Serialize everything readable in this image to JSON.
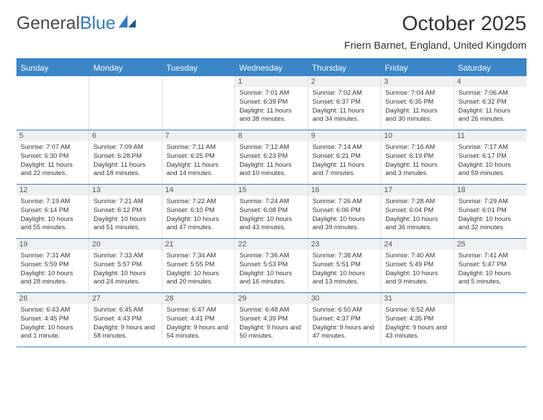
{
  "brand": {
    "part1": "General",
    "part2": "Blue"
  },
  "title": "October 2025",
  "location": "Friern Barnet, England, United Kingdom",
  "colors": {
    "accent": "#3b86c8",
    "border": "#2f7ac0",
    "daybg": "#eef0f2"
  },
  "weekdays": [
    "Sunday",
    "Monday",
    "Tuesday",
    "Wednesday",
    "Thursday",
    "Friday",
    "Saturday"
  ],
  "weeks": [
    [
      null,
      null,
      null,
      {
        "n": "1",
        "sr": "7:01 AM",
        "ss": "6:39 PM",
        "dl": "11 hours and 38 minutes."
      },
      {
        "n": "2",
        "sr": "7:02 AM",
        "ss": "6:37 PM",
        "dl": "11 hours and 34 minutes."
      },
      {
        "n": "3",
        "sr": "7:04 AM",
        "ss": "6:35 PM",
        "dl": "11 hours and 30 minutes."
      },
      {
        "n": "4",
        "sr": "7:06 AM",
        "ss": "6:32 PM",
        "dl": "11 hours and 26 minutes."
      }
    ],
    [
      {
        "n": "5",
        "sr": "7:07 AM",
        "ss": "6:30 PM",
        "dl": "11 hours and 22 minutes."
      },
      {
        "n": "6",
        "sr": "7:09 AM",
        "ss": "6:28 PM",
        "dl": "11 hours and 18 minutes."
      },
      {
        "n": "7",
        "sr": "7:11 AM",
        "ss": "6:25 PM",
        "dl": "11 hours and 14 minutes."
      },
      {
        "n": "8",
        "sr": "7:12 AM",
        "ss": "6:23 PM",
        "dl": "11 hours and 10 minutes."
      },
      {
        "n": "9",
        "sr": "7:14 AM",
        "ss": "6:21 PM",
        "dl": "11 hours and 7 minutes."
      },
      {
        "n": "10",
        "sr": "7:16 AM",
        "ss": "6:19 PM",
        "dl": "11 hours and 3 minutes."
      },
      {
        "n": "11",
        "sr": "7:17 AM",
        "ss": "6:17 PM",
        "dl": "10 hours and 59 minutes."
      }
    ],
    [
      {
        "n": "12",
        "sr": "7:19 AM",
        "ss": "6:14 PM",
        "dl": "10 hours and 55 minutes."
      },
      {
        "n": "13",
        "sr": "7:21 AM",
        "ss": "6:12 PM",
        "dl": "10 hours and 51 minutes."
      },
      {
        "n": "14",
        "sr": "7:22 AM",
        "ss": "6:10 PM",
        "dl": "10 hours and 47 minutes."
      },
      {
        "n": "15",
        "sr": "7:24 AM",
        "ss": "6:08 PM",
        "dl": "10 hours and 43 minutes."
      },
      {
        "n": "16",
        "sr": "7:26 AM",
        "ss": "6:06 PM",
        "dl": "10 hours and 39 minutes."
      },
      {
        "n": "17",
        "sr": "7:28 AM",
        "ss": "6:04 PM",
        "dl": "10 hours and 36 minutes."
      },
      {
        "n": "18",
        "sr": "7:29 AM",
        "ss": "6:01 PM",
        "dl": "10 hours and 32 minutes."
      }
    ],
    [
      {
        "n": "19",
        "sr": "7:31 AM",
        "ss": "5:59 PM",
        "dl": "10 hours and 28 minutes."
      },
      {
        "n": "20",
        "sr": "7:33 AM",
        "ss": "5:57 PM",
        "dl": "10 hours and 24 minutes."
      },
      {
        "n": "21",
        "sr": "7:34 AM",
        "ss": "5:55 PM",
        "dl": "10 hours and 20 minutes."
      },
      {
        "n": "22",
        "sr": "7:36 AM",
        "ss": "5:53 PM",
        "dl": "10 hours and 16 minutes."
      },
      {
        "n": "23",
        "sr": "7:38 AM",
        "ss": "5:51 PM",
        "dl": "10 hours and 13 minutes."
      },
      {
        "n": "24",
        "sr": "7:40 AM",
        "ss": "5:49 PM",
        "dl": "10 hours and 9 minutes."
      },
      {
        "n": "25",
        "sr": "7:41 AM",
        "ss": "5:47 PM",
        "dl": "10 hours and 5 minutes."
      }
    ],
    [
      {
        "n": "26",
        "sr": "6:43 AM",
        "ss": "4:45 PM",
        "dl": "10 hours and 1 minute."
      },
      {
        "n": "27",
        "sr": "6:45 AM",
        "ss": "4:43 PM",
        "dl": "9 hours and 58 minutes."
      },
      {
        "n": "28",
        "sr": "6:47 AM",
        "ss": "4:41 PM",
        "dl": "9 hours and 54 minutes."
      },
      {
        "n": "29",
        "sr": "6:48 AM",
        "ss": "4:39 PM",
        "dl": "9 hours and 50 minutes."
      },
      {
        "n": "30",
        "sr": "6:50 AM",
        "ss": "4:37 PM",
        "dl": "9 hours and 47 minutes."
      },
      {
        "n": "31",
        "sr": "6:52 AM",
        "ss": "4:35 PM",
        "dl": "9 hours and 43 minutes."
      },
      null
    ]
  ],
  "labels": {
    "sunrise": "Sunrise:",
    "sunset": "Sunset:",
    "daylight": "Daylight:"
  }
}
